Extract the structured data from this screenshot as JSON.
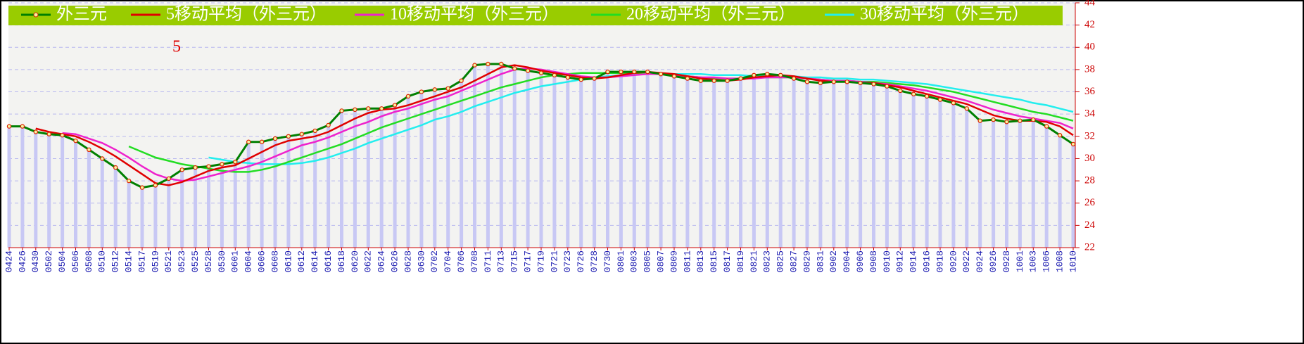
{
  "chart_data": {
    "type": "line",
    "annotation": "5",
    "categories": [
      "0424",
      "0426",
      "0430",
      "0502",
      "0504",
      "0506",
      "0508",
      "0510",
      "0512",
      "0514",
      "0517",
      "0519",
      "0521",
      "0523",
      "0525",
      "0528",
      "0530",
      "0601",
      "0604",
      "0606",
      "0608",
      "0610",
      "0612",
      "0614",
      "0616",
      "0618",
      "0620",
      "0622",
      "0624",
      "0626",
      "0628",
      "0630",
      "0702",
      "0704",
      "0706",
      "0708",
      "0711",
      "0713",
      "0715",
      "0717",
      "0719",
      "0721",
      "0723",
      "0726",
      "0728",
      "0730",
      "0801",
      "0803",
      "0805",
      "0807",
      "0809",
      "0811",
      "0813",
      "0815",
      "0817",
      "0819",
      "0821",
      "0823",
      "0825",
      "0827",
      "0829",
      "0831",
      "0902",
      "0904",
      "0906",
      "0908",
      "0910",
      "0912",
      "0914",
      "0916",
      "0918",
      "0920",
      "0922",
      "0924",
      "0926",
      "0928",
      "1001",
      "1003",
      "1006",
      "1008",
      "1010"
    ],
    "series": [
      {
        "name": "外三元",
        "color": "#008000",
        "marker_color": "#dd2200",
        "bar_color": "#c8c8f4",
        "values": [
          32.9,
          32.9,
          32.4,
          32.2,
          32.1,
          31.6,
          30.8,
          30.0,
          29.2,
          28.0,
          27.4,
          27.6,
          28.2,
          29.0,
          29.2,
          29.3,
          29.5,
          29.7,
          31.5,
          31.5,
          31.8,
          32.0,
          32.2,
          32.5,
          33.0,
          34.3,
          34.4,
          34.5,
          34.5,
          34.8,
          35.6,
          36.0,
          36.2,
          36.3,
          37.0,
          38.4,
          38.5,
          38.5,
          38.1,
          37.9,
          37.7,
          37.5,
          37.3,
          37.1,
          37.2,
          37.8,
          37.8,
          37.8,
          37.8,
          37.6,
          37.4,
          37.2,
          37.0,
          37.0,
          37.0,
          37.2,
          37.5,
          37.6,
          37.5,
          37.2,
          36.9,
          36.8,
          36.9,
          36.9,
          36.8,
          36.7,
          36.5,
          36.1,
          35.8,
          35.6,
          35.3,
          35.0,
          34.5,
          33.4,
          33.5,
          33.3,
          33.4,
          33.5,
          32.9,
          32.1,
          31.3
        ]
      },
      {
        "name": "5移动平均（外三元）",
        "color": "#e00000",
        "values": [
          null,
          null,
          32.7,
          32.4,
          32.2,
          32.0,
          31.5,
          30.9,
          30.2,
          29.4,
          28.6,
          27.8,
          27.6,
          27.9,
          28.4,
          28.9,
          29.2,
          29.4,
          30.0,
          30.6,
          31.2,
          31.6,
          31.8,
          32.0,
          32.4,
          33.0,
          33.6,
          34.1,
          34.4,
          34.5,
          34.8,
          35.2,
          35.6,
          36.0,
          36.4,
          37.0,
          37.6,
          38.2,
          38.4,
          38.2,
          37.9,
          37.7,
          37.5,
          37.3,
          37.2,
          37.3,
          37.5,
          37.7,
          37.8,
          37.7,
          37.6,
          37.4,
          37.2,
          37.1,
          37.0,
          37.1,
          37.3,
          37.4,
          37.5,
          37.4,
          37.2,
          37.0,
          36.9,
          36.9,
          36.8,
          36.8,
          36.6,
          36.4,
          36.1,
          35.8,
          35.5,
          35.2,
          34.9,
          34.4,
          33.9,
          33.6,
          33.4,
          33.4,
          33.3,
          32.9,
          32.1
        ]
      },
      {
        "name": "10移动平均（外三元）",
        "color": "#ee22cc",
        "values": [
          null,
          null,
          null,
          null,
          32.3,
          32.2,
          31.8,
          31.4,
          30.8,
          30.1,
          29.3,
          28.6,
          28.2,
          28.0,
          28.1,
          28.4,
          28.7,
          29.0,
          29.3,
          29.7,
          30.2,
          30.7,
          31.2,
          31.5,
          31.9,
          32.4,
          32.9,
          33.3,
          33.8,
          34.2,
          34.5,
          34.9,
          35.3,
          35.6,
          36.1,
          36.6,
          37.1,
          37.6,
          38.0,
          38.1,
          38.0,
          37.8,
          37.6,
          37.4,
          37.3,
          37.3,
          37.4,
          37.5,
          37.6,
          37.6,
          37.5,
          37.4,
          37.3,
          37.3,
          37.2,
          37.2,
          37.2,
          37.3,
          37.3,
          37.3,
          37.2,
          37.1,
          37.0,
          37.0,
          36.9,
          36.8,
          36.7,
          36.5,
          36.3,
          36.1,
          35.8,
          35.5,
          35.2,
          34.8,
          34.4,
          34.1,
          33.8,
          33.6,
          33.4,
          33.2,
          32.7
        ]
      },
      {
        "name": "20移动平均（外三元）",
        "color": "#22dd22",
        "values": [
          null,
          null,
          null,
          null,
          null,
          null,
          null,
          null,
          null,
          31.1,
          30.6,
          30.1,
          29.8,
          29.5,
          29.3,
          29.1,
          28.9,
          28.8,
          28.8,
          29.0,
          29.3,
          29.7,
          30.1,
          30.5,
          30.9,
          31.3,
          31.8,
          32.3,
          32.8,
          33.2,
          33.6,
          34.0,
          34.4,
          34.8,
          35.2,
          35.6,
          36.0,
          36.4,
          36.7,
          37.0,
          37.3,
          37.5,
          37.6,
          37.7,
          37.7,
          37.7,
          37.7,
          37.7,
          37.7,
          37.6,
          37.5,
          37.4,
          37.3,
          37.2,
          37.2,
          37.2,
          37.3,
          37.3,
          37.3,
          37.3,
          37.2,
          37.1,
          37.0,
          37.0,
          36.9,
          36.9,
          36.8,
          36.7,
          36.6,
          36.4,
          36.2,
          36.0,
          35.7,
          35.4,
          35.1,
          34.8,
          34.5,
          34.2,
          34.0,
          33.7,
          33.4
        ]
      },
      {
        "name": "30移动平均（外三元）",
        "color": "#22eeee",
        "values": [
          null,
          null,
          null,
          null,
          null,
          null,
          null,
          null,
          null,
          null,
          null,
          null,
          null,
          null,
          null,
          30.1,
          29.9,
          29.7,
          29.6,
          29.5,
          29.5,
          29.5,
          29.6,
          29.8,
          30.1,
          30.5,
          30.9,
          31.4,
          31.8,
          32.2,
          32.6,
          33.0,
          33.5,
          33.8,
          34.2,
          34.7,
          35.1,
          35.5,
          35.9,
          36.2,
          36.5,
          36.7,
          36.9,
          37.1,
          37.3,
          37.4,
          37.5,
          37.6,
          37.6,
          37.6,
          37.6,
          37.6,
          37.6,
          37.5,
          37.5,
          37.5,
          37.4,
          37.4,
          37.4,
          37.4,
          37.3,
          37.3,
          37.2,
          37.2,
          37.1,
          37.1,
          37.0,
          36.9,
          36.8,
          36.7,
          36.5,
          36.3,
          36.1,
          35.9,
          35.7,
          35.5,
          35.3,
          35.0,
          34.8,
          34.5,
          34.2
        ]
      }
    ],
    "ylim": [
      22,
      44
    ],
    "yticks": [
      22,
      24,
      26,
      28,
      30,
      32,
      34,
      36,
      38,
      40,
      42,
      44
    ],
    "grid": true,
    "legend": "top"
  }
}
